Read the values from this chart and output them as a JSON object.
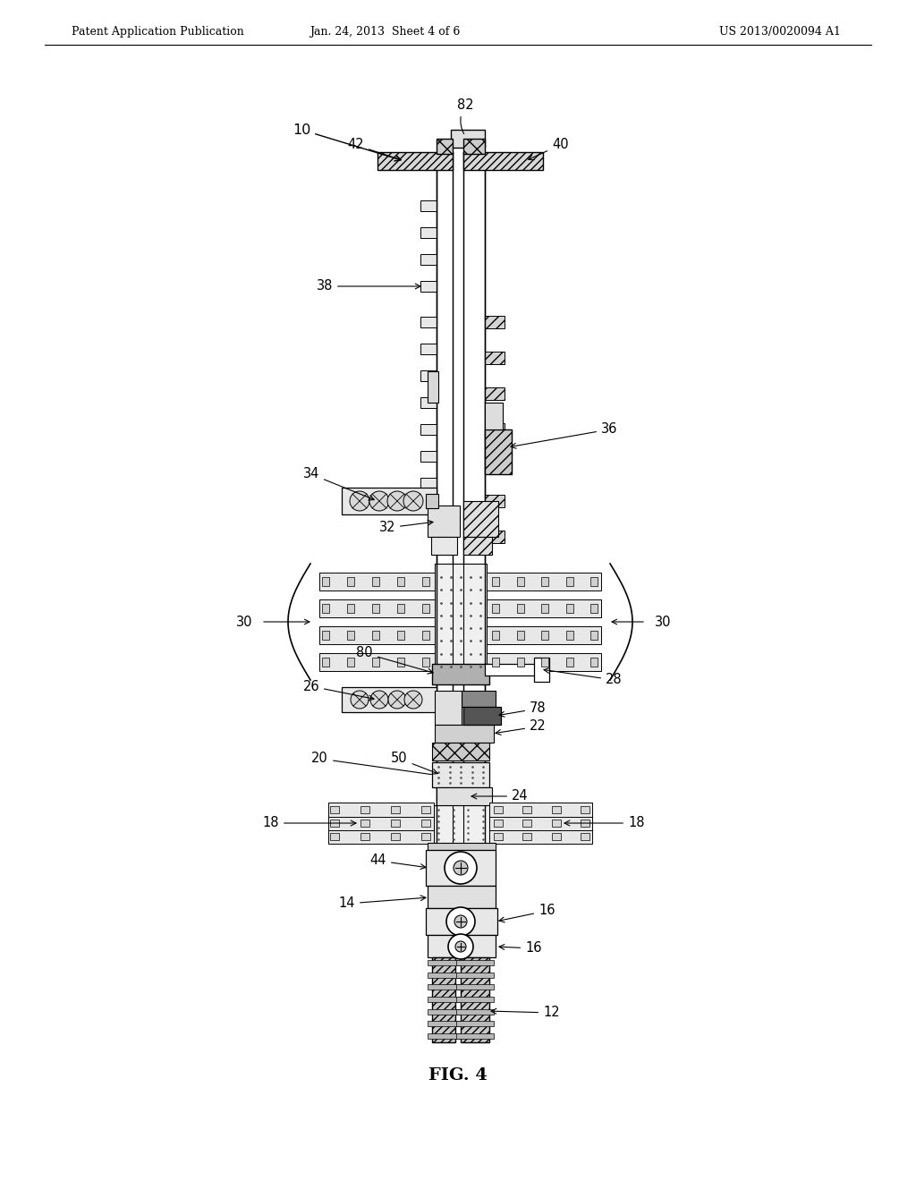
{
  "background_color": "#ffffff",
  "header_left": "Patent Application Publication",
  "header_center": "Jan. 24, 2013  Sheet 4 of 6",
  "header_right": "US 2013/0020094 A1",
  "figure_label": "FIG. 4"
}
